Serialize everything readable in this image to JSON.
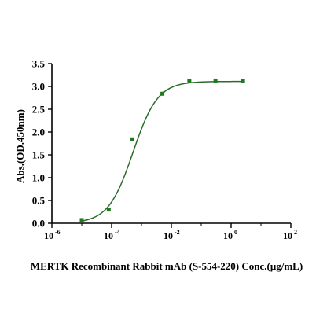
{
  "chart_data": {
    "type": "scatter",
    "xlabel": "MERTK Recombinant Rabbit mAb (S-554-220)  Conc.(μg/mL)",
    "ylabel": "Abs.(OD.450nm)",
    "x_scale": "log",
    "xlim": [
      1e-06,
      100
    ],
    "ylim": [
      0,
      3.5
    ],
    "x_ticks": [
      {
        "base": "10",
        "exp": "-6",
        "value": 1e-06
      },
      {
        "base": "10",
        "exp": "-4",
        "value": 0.0001
      },
      {
        "base": "10",
        "exp": "-2",
        "value": 0.01
      },
      {
        "base": "10",
        "exp": "0",
        "value": 1
      },
      {
        "base": "10",
        "exp": "2",
        "value": 100
      }
    ],
    "y_ticks": [
      "0.0",
      "0.5",
      "1.0",
      "1.5",
      "2.0",
      "2.5",
      "3.0",
      "3.5"
    ],
    "grid": false,
    "series": [
      {
        "points": [
          {
            "x": 1e-05,
            "y": 0.07
          },
          {
            "x": 8e-05,
            "y": 0.3
          },
          {
            "x": 0.0005,
            "y": 1.84
          },
          {
            "x": 0.005,
            "y": 2.84
          },
          {
            "x": 0.04,
            "y": 3.12
          },
          {
            "x": 0.3,
            "y": 3.13
          },
          {
            "x": 2.5,
            "y": 3.12
          }
        ],
        "fit": {
          "bottom": 0.0,
          "top": 3.11,
          "ec50": 0.00052,
          "hill": 1.05
        }
      }
    ],
    "colors": {
      "marker": "#1e7a1e",
      "curve": "#2a6b2a"
    }
  }
}
